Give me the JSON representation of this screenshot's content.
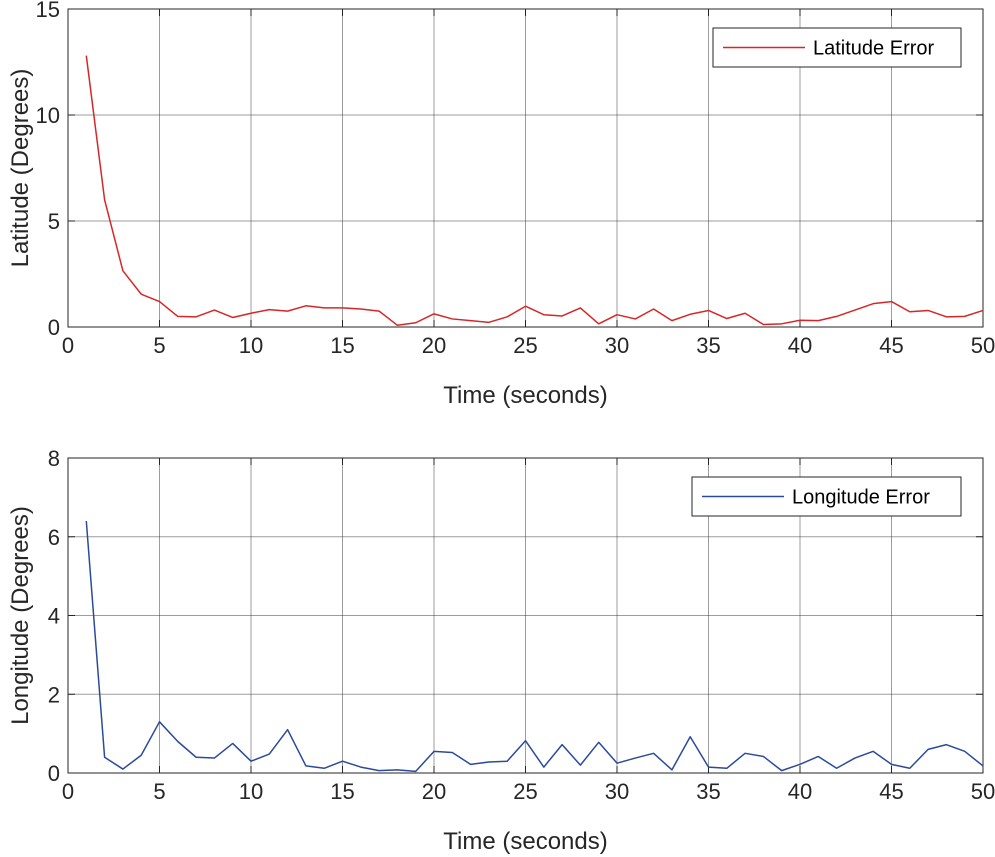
{
  "chart_data": [
    {
      "type": "line",
      "xlabel": "Time (seconds)",
      "ylabel": "Latitude (Degrees)",
      "xlim": [
        0,
        50
      ],
      "ylim": [
        0,
        15
      ],
      "xticks": [
        0,
        5,
        10,
        15,
        20,
        25,
        30,
        35,
        40,
        45,
        50
      ],
      "yticks": [
        0,
        5,
        10,
        15
      ],
      "grid": true,
      "legend_position": "top-right",
      "series": [
        {
          "name": "Latitude Error",
          "color": "#d62728",
          "x": [
            1,
            2,
            3,
            4,
            5,
            6,
            7,
            8,
            9,
            10,
            11,
            12,
            13,
            14,
            15,
            16,
            17,
            18,
            19,
            20,
            21,
            22,
            23,
            24,
            25,
            26,
            27,
            28,
            29,
            30,
            31,
            32,
            33,
            34,
            35,
            36,
            37,
            38,
            39,
            40,
            41,
            42,
            43,
            44,
            45,
            46,
            47,
            48,
            49,
            50
          ],
          "y": [
            12.8,
            6.0,
            2.65,
            1.55,
            1.2,
            0.5,
            0.48,
            0.8,
            0.45,
            0.65,
            0.82,
            0.75,
            1.0,
            0.9,
            0.9,
            0.85,
            0.75,
            0.08,
            0.2,
            0.62,
            0.38,
            0.3,
            0.22,
            0.48,
            0.98,
            0.58,
            0.52,
            0.9,
            0.15,
            0.58,
            0.38,
            0.85,
            0.3,
            0.6,
            0.78,
            0.4,
            0.65,
            0.12,
            0.15,
            0.32,
            0.3,
            0.5,
            0.8,
            1.1,
            1.2,
            0.72,
            0.78,
            0.48,
            0.5,
            0.78
          ]
        }
      ]
    },
    {
      "type": "line",
      "xlabel": "Time (seconds)",
      "ylabel": "Longitude (Degrees)",
      "xlim": [
        0,
        50
      ],
      "ylim": [
        0,
        8
      ],
      "xticks": [
        0,
        5,
        10,
        15,
        20,
        25,
        30,
        35,
        40,
        45,
        50
      ],
      "yticks": [
        0,
        2,
        4,
        6,
        8
      ],
      "grid": true,
      "legend_position": "top-right",
      "series": [
        {
          "name": "Longitude Error",
          "color": "#2b4a9b",
          "x": [
            1,
            2,
            3,
            4,
            5,
            6,
            7,
            8,
            9,
            10,
            11,
            12,
            13,
            14,
            15,
            16,
            17,
            18,
            19,
            20,
            21,
            22,
            23,
            24,
            25,
            26,
            27,
            28,
            29,
            30,
            31,
            32,
            33,
            34,
            35,
            36,
            37,
            38,
            39,
            40,
            41,
            42,
            43,
            44,
            45,
            46,
            47,
            48,
            49,
            50
          ],
          "y": [
            6.4,
            0.4,
            0.1,
            0.45,
            1.3,
            0.8,
            0.4,
            0.38,
            0.75,
            0.3,
            0.48,
            1.1,
            0.18,
            0.12,
            0.3,
            0.15,
            0.06,
            0.08,
            0.04,
            0.55,
            0.52,
            0.22,
            0.28,
            0.3,
            0.82,
            0.15,
            0.72,
            0.2,
            0.78,
            0.25,
            0.38,
            0.5,
            0.08,
            0.92,
            0.15,
            0.12,
            0.5,
            0.42,
            0.06,
            0.22,
            0.42,
            0.12,
            0.38,
            0.55,
            0.22,
            0.12,
            0.6,
            0.72,
            0.55,
            0.18
          ]
        }
      ]
    }
  ]
}
